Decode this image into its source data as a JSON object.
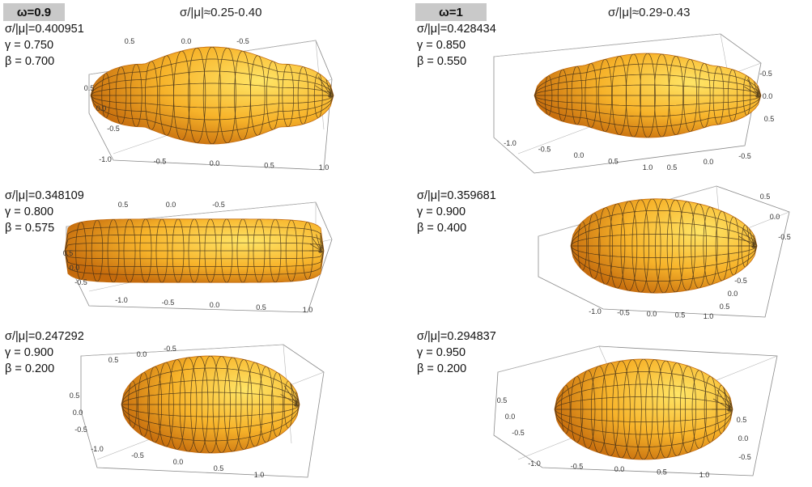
{
  "columns": [
    {
      "omega_label": "ω=0.9",
      "range_label": "σ/|μ|≈0.25-0.40",
      "panels": [
        {
          "sigma": "σ/|μ|=0.400951",
          "gamma": "γ = 0.750",
          "beta": "β = 0.700",
          "shape": "peanut",
          "ticks": {
            "front": [
              "-1.0",
              "-0.5",
              "0.0",
              "0.5",
              "1.0"
            ],
            "left": [
              "0.5",
              "0.0",
              "-0.5"
            ],
            "top": [
              "0.5",
              "0.0",
              "-0.5"
            ]
          }
        },
        {
          "sigma": "σ/|μ|=0.348109",
          "gamma": "γ = 0.800",
          "beta": "β = 0.575",
          "shape": "capsule",
          "ticks": {
            "front": [
              "-1.0",
              "-0.5",
              "0.0",
              "0.5",
              "1.0"
            ],
            "left": [
              "0.5",
              "0.0",
              "-0.5"
            ],
            "top": [
              "0.5",
              "0.0",
              "-0.5"
            ]
          }
        },
        {
          "sigma": "σ/|μ|=0.247292",
          "gamma": "γ = 0.900",
          "beta": "β = 0.200",
          "shape": "ellipsoid",
          "ticks": {
            "front": [
              "-1.0",
              "-0.5",
              "0.0",
              "0.5",
              "1.0"
            ],
            "left": [
              "0.5",
              "0.0",
              "-0.5"
            ],
            "top": [
              "0.5",
              "0.0",
              "-0.5"
            ]
          }
        }
      ]
    },
    {
      "omega_label": "ω=1",
      "range_label": "σ/|μ|≈0.29-0.43",
      "panels": [
        {
          "sigma": "σ/|μ|=0.428434",
          "gamma": "γ = 0.850",
          "beta": "β = 0.550",
          "shape": "peanut-soft",
          "ticks": {
            "front": [
              "-1.0",
              "-0.5",
              "0.0",
              "0.5",
              "1.0"
            ],
            "right": [
              "-0.5",
              "0.0",
              "0.5"
            ],
            "side": [
              "0.5",
              "0.0",
              "-0.5"
            ]
          }
        },
        {
          "sigma": "σ/|μ|=0.359681",
          "gamma": "γ = 0.900",
          "beta": "β = 0.400",
          "shape": "egg",
          "ticks": {
            "front": [
              "-1.0",
              "-0.5",
              "0.0",
              "0.5",
              "1.0"
            ],
            "right": [
              "0.5",
              "0.0",
              "-0.5"
            ],
            "side": [
              "0.5",
              "0.0",
              "-0.5"
            ]
          }
        },
        {
          "sigma": "σ/|μ|=0.294837",
          "gamma": "γ = 0.950",
          "beta": "β = 0.200",
          "shape": "ellipsoid",
          "ticks": {
            "front": [
              "-1.0",
              "-0.5",
              "0.0",
              "0.5",
              "1.0"
            ],
            "right": [
              "0.5",
              "0.0",
              "-0.5"
            ],
            "side": [
              "0.5",
              "0.0",
              "-0.5"
            ]
          }
        }
      ]
    }
  ],
  "colors": {
    "body_light": "#ffe566",
    "body_mid": "#f7b32a",
    "body_dark": "#c46a0c",
    "mesh": "#3a2a18",
    "box": "#8a8a8a",
    "header_bg": "#c9c9c9"
  }
}
